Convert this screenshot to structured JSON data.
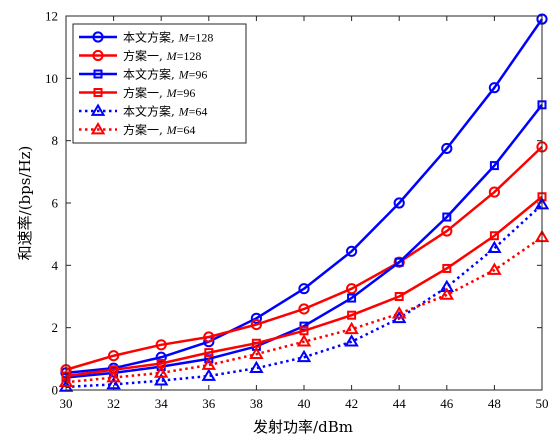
{
  "chart_data": {
    "type": "line",
    "xlabel": "发射功率/dBm",
    "ylabel": "和速率/(bps/Hz)",
    "xlim": [
      30,
      50
    ],
    "ylim": [
      0,
      12
    ],
    "xticks": [
      30,
      32,
      34,
      36,
      38,
      40,
      42,
      44,
      46,
      48,
      50
    ],
    "yticks": [
      0,
      2,
      4,
      6,
      8,
      10,
      12
    ],
    "grid": false,
    "legend_position": "top-left",
    "x": [
      30,
      32,
      34,
      36,
      38,
      40,
      42,
      44,
      46,
      48,
      50
    ],
    "series": [
      {
        "name": "本文方案, M=128",
        "prefix": "本文方案, ",
        "param": "M",
        "param_value": "=128",
        "values": [
          0.55,
          0.7,
          1.05,
          1.55,
          2.3,
          3.25,
          4.45,
          6.0,
          7.75,
          9.7,
          11.9
        ],
        "color": "#0000ff",
        "marker": "circle",
        "dash": "solid"
      },
      {
        "name": "方案一, M=128",
        "prefix": "方案一, ",
        "param": "M",
        "param_value": "=128",
        "values": [
          0.65,
          1.1,
          1.45,
          1.7,
          2.1,
          2.6,
          3.25,
          4.1,
          5.1,
          6.35,
          7.8
        ],
        "color": "#ff0000",
        "marker": "circle",
        "dash": "solid"
      },
      {
        "name": "本文方案, M=96",
        "prefix": "本文方案, ",
        "param": "M",
        "param_value": "=96",
        "values": [
          0.4,
          0.55,
          0.75,
          1.0,
          1.4,
          2.05,
          2.95,
          4.1,
          5.55,
          7.2,
          9.15
        ],
        "color": "#0000ff",
        "marker": "square",
        "dash": "solid"
      },
      {
        "name": "方案一, M=96",
        "prefix": "方案一, ",
        "param": "M",
        "param_value": "=96",
        "values": [
          0.45,
          0.65,
          0.85,
          1.2,
          1.5,
          1.9,
          2.4,
          3.0,
          3.9,
          4.95,
          6.2
        ],
        "color": "#ff0000",
        "marker": "square",
        "dash": "solid"
      },
      {
        "name": "本文方案, M=64",
        "prefix": "本文方案, ",
        "param": "M",
        "param_value": "=64",
        "values": [
          0.1,
          0.18,
          0.3,
          0.45,
          0.7,
          1.05,
          1.55,
          2.3,
          3.3,
          4.55,
          5.95
        ],
        "color": "#0000ff",
        "marker": "triangle",
        "dash": "dotted"
      },
      {
        "name": "方案一, M=64",
        "prefix": "方案一, ",
        "param": "M",
        "param_value": "=64",
        "values": [
          0.25,
          0.4,
          0.55,
          0.8,
          1.15,
          1.55,
          1.95,
          2.45,
          3.05,
          3.85,
          4.9
        ],
        "color": "#ff0000",
        "marker": "triangle",
        "dash": "dotted"
      }
    ]
  }
}
